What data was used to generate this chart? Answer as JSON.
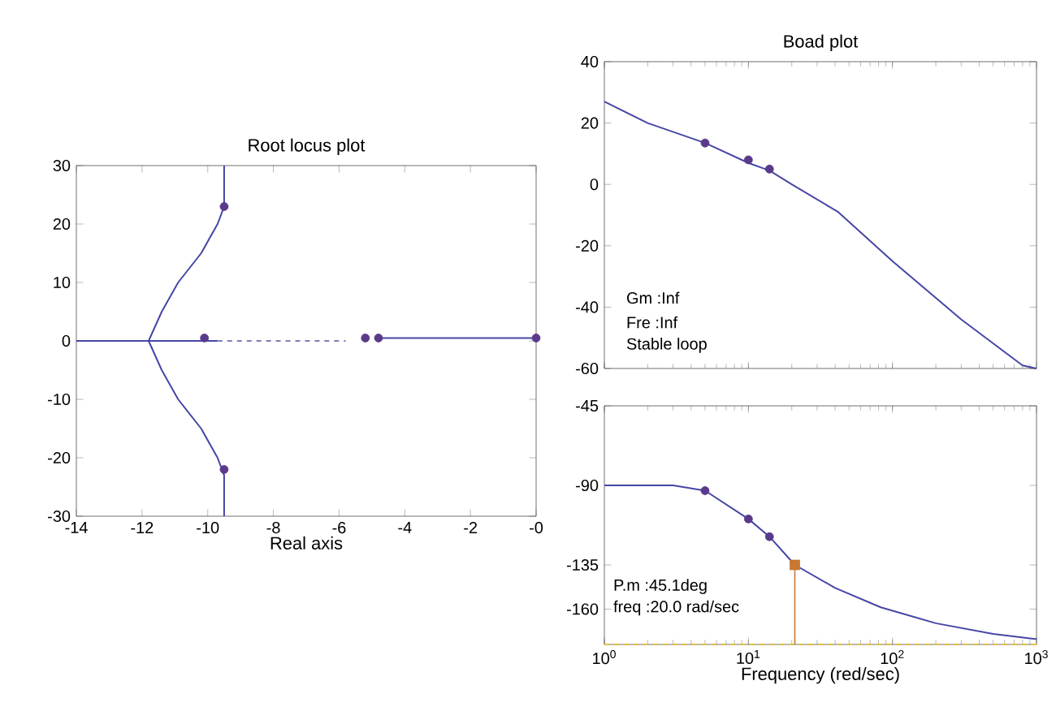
{
  "chart_data": [
    {
      "type": "line",
      "title": "Root locus plot",
      "xlabel": "Real axis",
      "xlim": [
        -14,
        0
      ],
      "ylim": [
        -30,
        30
      ],
      "xticks": [
        -14,
        -12,
        -10,
        -8,
        -6,
        -4,
        -2,
        {
          "value": 0,
          "label": "-0"
        }
      ],
      "yticks": [
        -30,
        -20,
        -10,
        0,
        10,
        20,
        30
      ],
      "grid": false,
      "series": [
        {
          "color": "#4646a6",
          "x": [
            -9.5,
            -9.5,
            -9.7,
            -10.2,
            -10.9,
            -11.4,
            -11.8,
            -11.4,
            -10.9,
            -10.2,
            -9.7,
            -9.5,
            -9.5
          ],
          "values": [
            30,
            23,
            20,
            15,
            10,
            5,
            0,
            -5,
            -10,
            -15,
            -20,
            -23,
            -30
          ]
        },
        {
          "color": "#4646a6",
          "x": [
            -14,
            -9.7
          ],
          "values": [
            0,
            0
          ]
        },
        {
          "line_style": "dashed",
          "color": "#8080b0",
          "x": [
            -9.7,
            -5.8
          ],
          "values": [
            0,
            0
          ]
        },
        {
          "color": "#4646a6",
          "x": [
            -4.8,
            0
          ],
          "values": [
            0.5,
            0.5
          ]
        },
        {
          "type": "scatter",
          "marker": "circle",
          "color": "#5a3a8a",
          "x": [
            -9.5,
            -9.5,
            -5.2,
            -4.8,
            -10.1,
            0
          ],
          "values": [
            23,
            -22,
            0.5,
            0.5,
            0.5,
            0.5
          ]
        }
      ]
    },
    {
      "type": "line",
      "title": "Boad plot",
      "log": "x",
      "tick_labels": "y",
      "xlim": [
        1,
        1000
      ],
      "ylim": [
        -60,
        40
      ],
      "yticks": [
        -60,
        -40,
        -20,
        0,
        20,
        40
      ],
      "grid": false,
      "annotations": [
        "Gm :Inf",
        "Fre :Inf",
        "Stable loop"
      ],
      "series": [
        {
          "color": "#4646a6",
          "x": [
            1,
            2,
            5,
            10,
            14,
            20,
            42,
            100,
            300,
            800,
            1000
          ],
          "values": [
            27,
            20,
            13.5,
            7,
            4.5,
            0,
            -9,
            -25,
            -44,
            -59,
            -60
          ]
        },
        {
          "type": "scatter",
          "marker": "circle",
          "color": "#5a3a8a",
          "x": [
            5,
            10,
            14
          ],
          "values": [
            13.5,
            8,
            5
          ]
        }
      ]
    },
    {
      "type": "line",
      "xlabel": "Frequency (red/sec)",
      "log": "x",
      "xlim": [
        1,
        1000
      ],
      "ylim": [
        -180,
        -45
      ],
      "xticks": [
        {
          "value": 1,
          "label": "10$^{0}$"
        },
        {
          "value": 10,
          "label": "10$^{1}$"
        },
        {
          "value": 100,
          "label": "10$^{2}$"
        },
        {
          "value": 1000,
          "label": "10$^{3}$"
        }
      ],
      "yticks": [
        -45,
        -90,
        -135,
        -160
      ],
      "grid": false,
      "annotations": [
        "P.m :45.1deg",
        "freq :20.0 rad/sec"
      ],
      "ref_lines": [
        {
          "axis": "y",
          "value": -180,
          "color": "#e0c040",
          "line_style": "dashed"
        }
      ],
      "series": [
        {
          "color": "#4646a6",
          "x": [
            1,
            3,
            5,
            10,
            14,
            21,
            40,
            83,
            200,
            500,
            1000
          ],
          "values": [
            -90,
            -90,
            -93,
            -109,
            -119,
            -135,
            -148,
            -159,
            -168,
            -174,
            -177
          ]
        },
        {
          "type": "scatter",
          "marker": "circle",
          "color": "#5a3a8a",
          "x": [
            5,
            10,
            14
          ],
          "values": [
            -93,
            -109,
            -119
          ]
        },
        {
          "type": "lollipop",
          "marker": "square",
          "color": "#c87830",
          "x": [
            21
          ],
          "values": [
            -135
          ]
        }
      ]
    }
  ]
}
